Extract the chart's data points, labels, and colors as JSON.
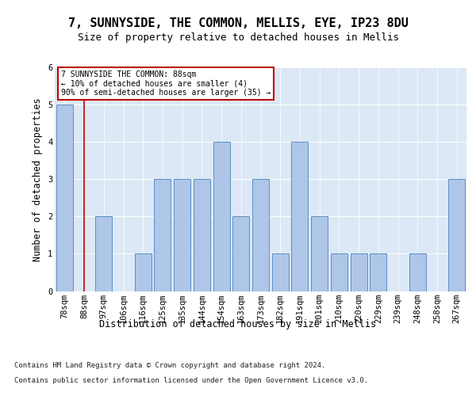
{
  "title1": "7, SUNNYSIDE, THE COMMON, MELLIS, EYE, IP23 8DU",
  "title2": "Size of property relative to detached houses in Mellis",
  "xlabel": "Distribution of detached houses by size in Mellis",
  "ylabel": "Number of detached properties",
  "categories": [
    "78sqm",
    "88sqm",
    "97sqm",
    "106sqm",
    "116sqm",
    "125sqm",
    "135sqm",
    "144sqm",
    "154sqm",
    "163sqm",
    "173sqm",
    "182sqm",
    "191sqm",
    "201sqm",
    "210sqm",
    "220sqm",
    "229sqm",
    "239sqm",
    "248sqm",
    "258sqm",
    "267sqm"
  ],
  "values": [
    5,
    0,
    2,
    0,
    1,
    3,
    3,
    3,
    4,
    2,
    3,
    1,
    4,
    2,
    1,
    1,
    1,
    0,
    1,
    0,
    3
  ],
  "highlight_index": 1,
  "highlight_color": "#c00000",
  "bar_color": "#aec6e8",
  "bar_edge_color": "#5b8ec4",
  "ylim": [
    0,
    6
  ],
  "yticks": [
    0,
    1,
    2,
    3,
    4,
    5,
    6
  ],
  "annotation_box_text": "7 SUNNYSIDE THE COMMON: 88sqm\n← 10% of detached houses are smaller (4)\n90% of semi-detached houses are larger (35) →",
  "footer1": "Contains HM Land Registry data © Crown copyright and database right 2024.",
  "footer2": "Contains public sector information licensed under the Open Government Licence v3.0.",
  "background_color": "#dce8f5",
  "fig_background": "#ffffff",
  "title_fontsize": 11,
  "title2_fontsize": 9,
  "axis_label_fontsize": 8.5,
  "tick_fontsize": 7.5,
  "footer_fontsize": 6.5
}
